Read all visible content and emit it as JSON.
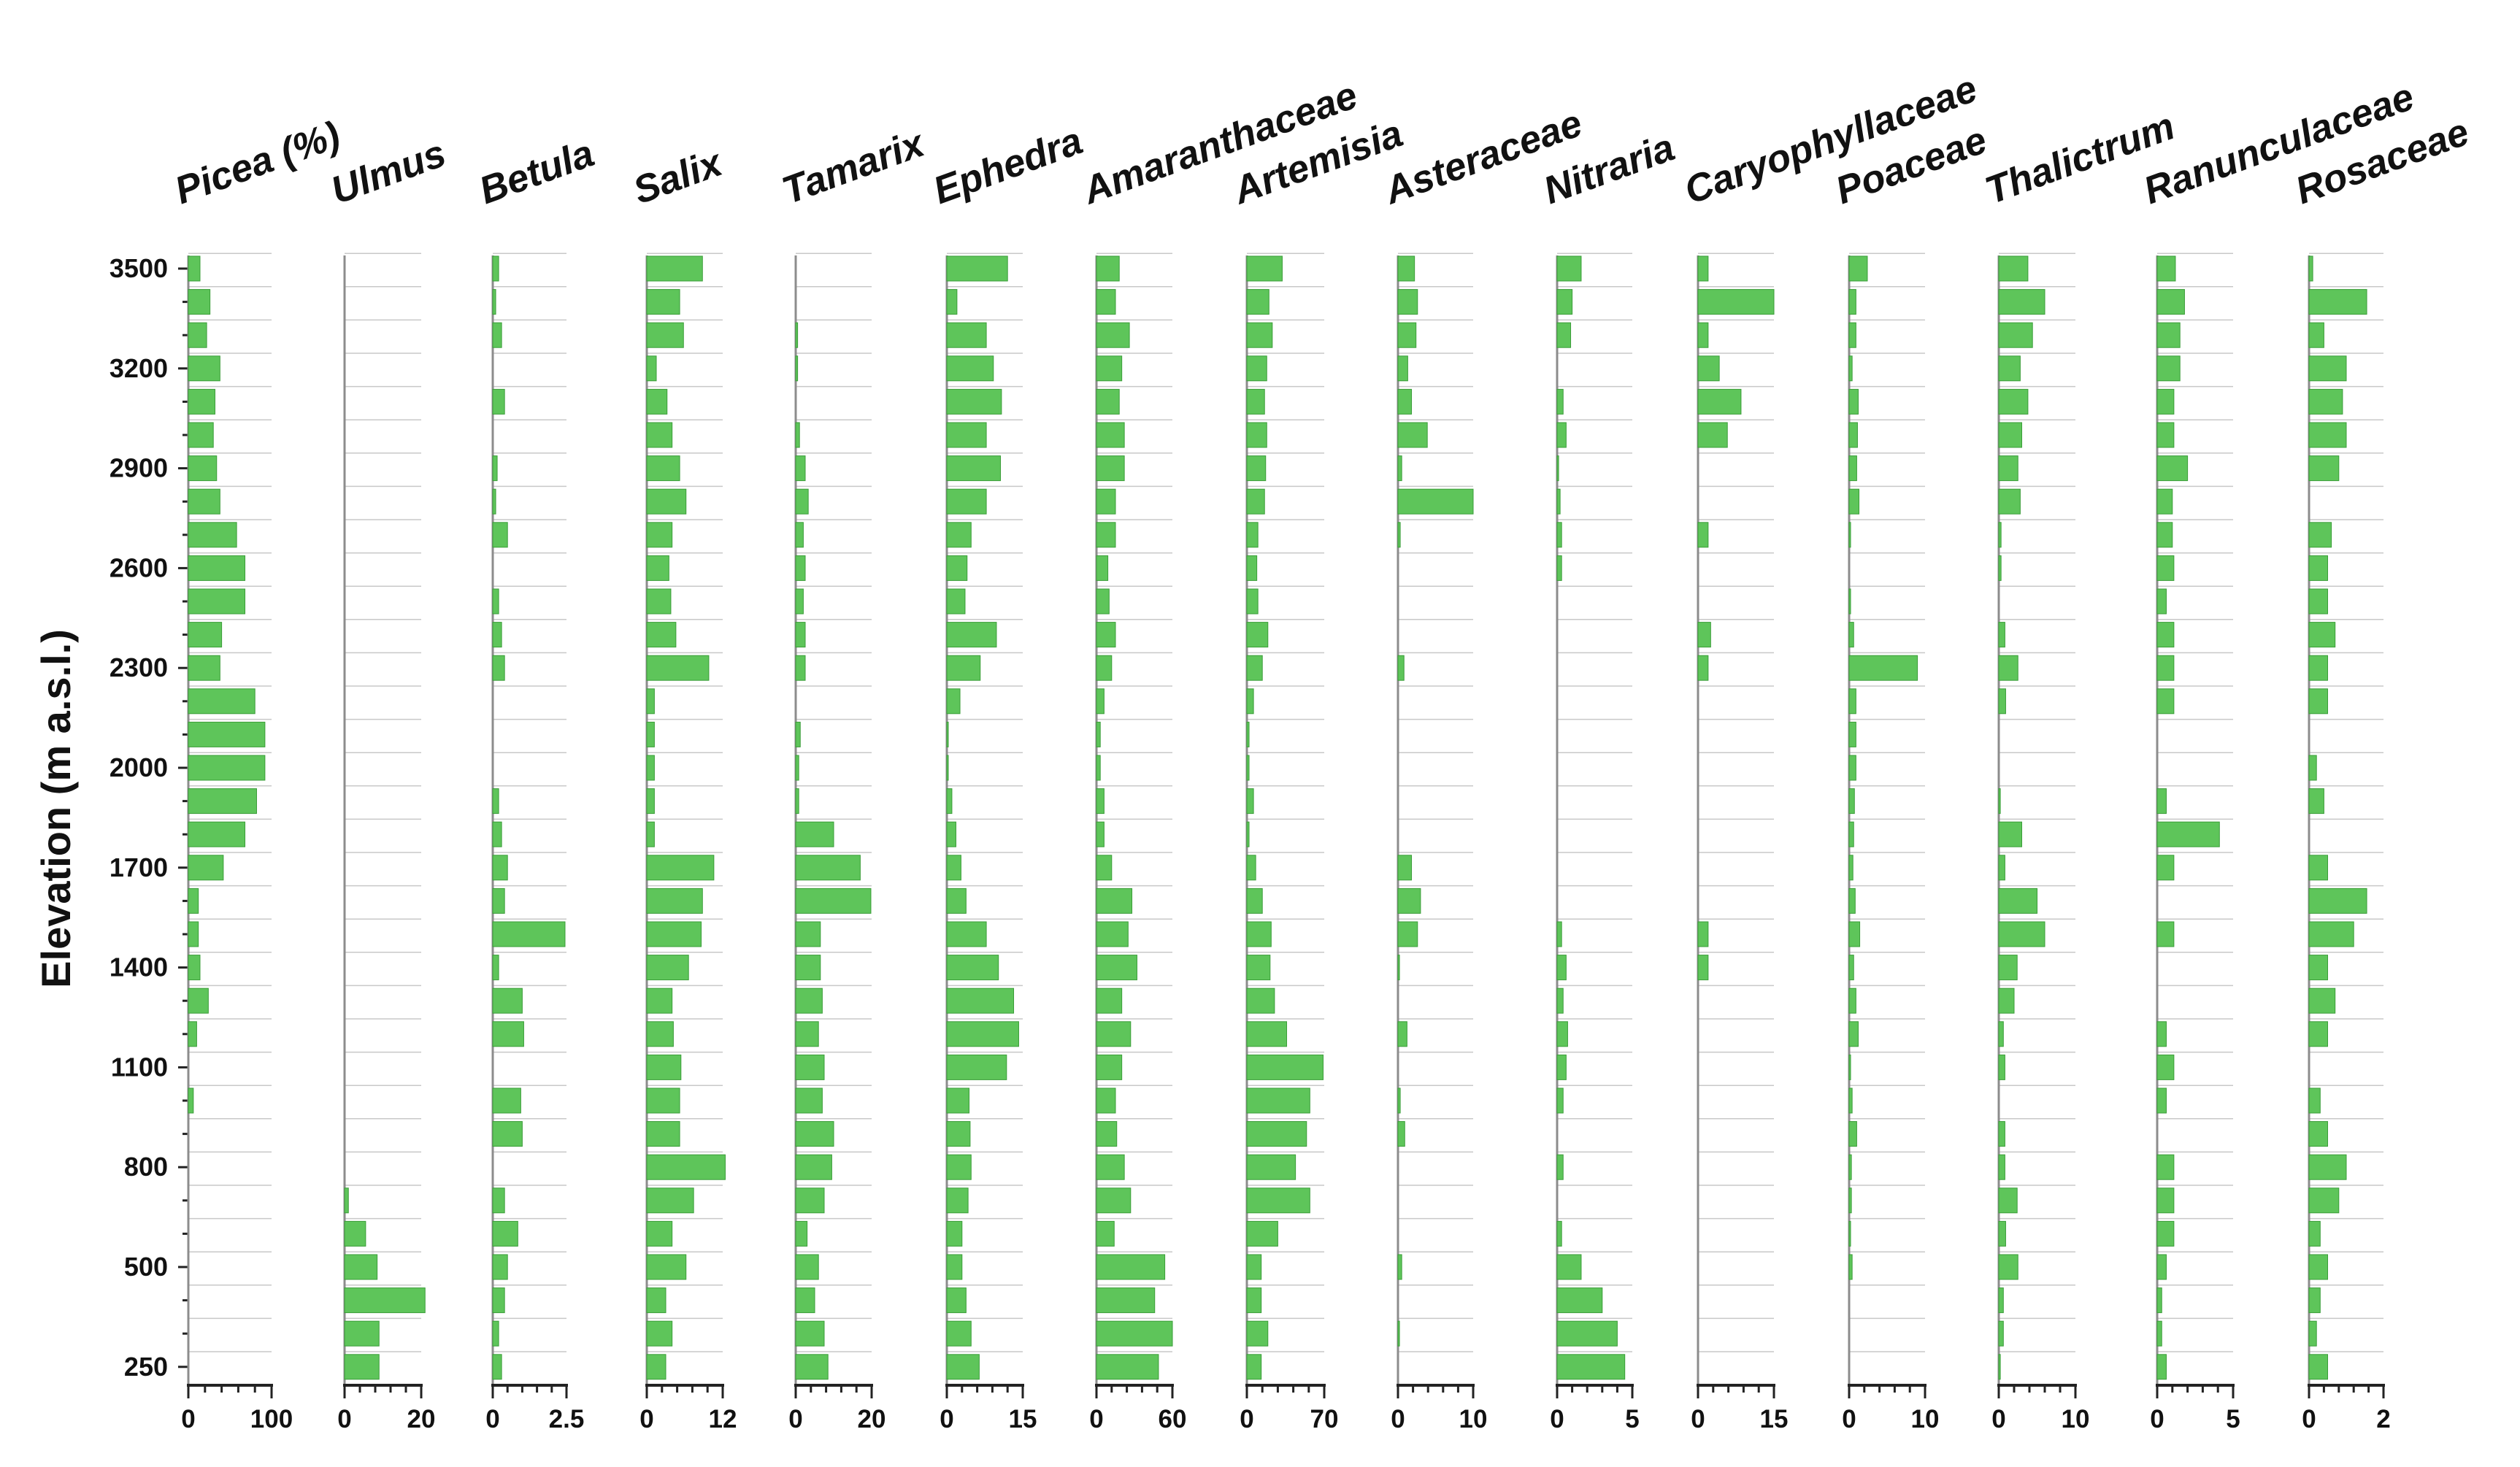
{
  "colors": {
    "bar": "#5ec55a",
    "bar_edge": "#3a9d38",
    "axis": "#222222",
    "gridline": "#c8c8c8",
    "baseline": "#8c8c8c"
  },
  "chart_data": {
    "type": "bar",
    "orientation": "horizontal",
    "ylabel": "Elevation (m a.s.l.)",
    "yticks": [
      "3500",
      "3200",
      "2900",
      "2600",
      "2300",
      "2000",
      "1700",
      "1400",
      "1100",
      "800",
      "500",
      "250"
    ],
    "n_samples": 34,
    "panels": [
      {
        "title": "Picea (%)",
        "xmax": 100,
        "xticks": [
          "0",
          "100"
        ],
        "values": [
          14,
          26,
          22,
          38,
          32,
          30,
          34,
          38,
          58,
          68,
          68,
          40,
          38,
          80,
          92,
          92,
          82,
          68,
          42,
          12,
          12,
          14,
          24,
          10,
          0,
          6,
          0,
          0,
          0,
          0,
          0,
          0,
          0,
          0
        ]
      },
      {
        "title": "Ulmus",
        "xmax": 20,
        "xticks": [
          "0",
          "20"
        ],
        "values": [
          0,
          0,
          0,
          0,
          0,
          0,
          0,
          0,
          0,
          0,
          0,
          0,
          0,
          0,
          0,
          0,
          0,
          0,
          0,
          0,
          0,
          0,
          0,
          0,
          0,
          0,
          0,
          0,
          1,
          5.5,
          8.5,
          21,
          9,
          9
        ]
      },
      {
        "title": "Betula",
        "xmax": 2.5,
        "xticks": [
          "0",
          "2.5"
        ],
        "values": [
          0.2,
          0.1,
          0.3,
          0,
          0.4,
          0,
          0.15,
          0.1,
          0.5,
          0,
          0.2,
          0.3,
          0.4,
          0,
          0,
          0,
          0.2,
          0.3,
          0.5,
          0.4,
          2.45,
          0.2,
          1,
          1.05,
          0,
          0.95,
          1,
          0,
          0.4,
          0.85,
          0.5,
          0.4,
          0.2,
          0.3
        ]
      },
      {
        "title": "Salix",
        "xmax": 12,
        "xticks": [
          "0",
          "12"
        ],
        "values": [
          8.8,
          5.2,
          5.8,
          1.5,
          3.2,
          4,
          5.2,
          6.2,
          4,
          3.5,
          3.8,
          4.6,
          9.8,
          1.2,
          1.2,
          1.2,
          1.2,
          1.2,
          10.6,
          8.8,
          8.6,
          6.6,
          4,
          4.2,
          5.4,
          5.2,
          5.2,
          12.4,
          7.4,
          4,
          6.2,
          3,
          4,
          3
        ]
      },
      {
        "title": "Tamarix",
        "xmax": 20,
        "xticks": [
          "0",
          "20"
        ],
        "values": [
          0,
          0,
          0.5,
          0.5,
          0,
          1,
          2.5,
          3.3,
          2,
          2.5,
          2,
          2.5,
          2.5,
          0,
          1.2,
          0.8,
          0.8,
          10,
          17,
          19.8,
          6.5,
          6.5,
          7,
          6,
          7.5,
          7,
          10,
          9.5,
          7.5,
          3,
          6,
          5,
          7.5,
          8.5
        ]
      },
      {
        "title": "Ephedra",
        "xmax": 15,
        "xticks": [
          "0",
          "15"
        ],
        "values": [
          12,
          2,
          7.8,
          9.2,
          10.8,
          7.8,
          10.6,
          7.8,
          4.8,
          4,
          3.6,
          9.8,
          6.6,
          2.6,
          0.2,
          0.2,
          1,
          1.8,
          2.8,
          3.8,
          7.8,
          10.2,
          13.2,
          14.2,
          11.8,
          4.4,
          4.6,
          4.8,
          4.2,
          3,
          3,
          3.8,
          4.8,
          6.4
        ]
      },
      {
        "title": "Amaranthaceae",
        "xmax": 60,
        "xticks": [
          "0",
          "60"
        ],
        "values": [
          18,
          15,
          26,
          20,
          18,
          22,
          22,
          15,
          15,
          9,
          10,
          15,
          12,
          6,
          3,
          3,
          6,
          6,
          12,
          28,
          25,
          32,
          20,
          27,
          20,
          15,
          16,
          22,
          27,
          14,
          54,
          46,
          60,
          49
        ]
      },
      {
        "title": "Artemisia",
        "xmax": 70,
        "xticks": [
          "0",
          "70"
        ],
        "values": [
          32,
          20,
          23,
          18,
          16,
          18,
          17,
          16,
          10,
          9,
          10,
          19,
          14,
          6,
          2,
          2,
          6,
          2,
          8,
          14,
          22,
          21,
          25,
          36,
          69,
          57,
          54,
          44,
          57,
          28,
          13,
          13,
          19,
          13
        ]
      },
      {
        "title": "Asteraceae",
        "xmax": 10,
        "xticks": [
          "0",
          "10"
        ],
        "values": [
          2.2,
          2.6,
          2.4,
          1.3,
          1.8,
          3.9,
          0.5,
          10,
          0.3,
          0,
          0,
          0,
          0.8,
          0,
          0,
          0,
          0,
          0,
          1.8,
          3,
          2.6,
          0.2,
          0,
          1.2,
          0,
          0.3,
          0.9,
          0,
          0,
          0,
          0.5,
          0,
          0.2,
          0
        ]
      },
      {
        "title": "Nitraria",
        "xmax": 5,
        "xticks": [
          "0",
          "5"
        ],
        "values": [
          1.6,
          1,
          0.9,
          0,
          0.4,
          0.6,
          0.1,
          0.2,
          0.3,
          0.3,
          0,
          0,
          0,
          0,
          0,
          0,
          0,
          0,
          0,
          0,
          0.3,
          0.6,
          0.4,
          0.7,
          0.6,
          0.4,
          0,
          0.4,
          0,
          0.3,
          1.6,
          3,
          4,
          4.5
        ]
      },
      {
        "title": "Caryophyllaceae",
        "xmax": 15,
        "xticks": [
          "0",
          "15"
        ],
        "values": [
          2,
          15,
          2,
          4.2,
          8.5,
          5.8,
          0,
          0,
          2,
          0,
          0,
          2.5,
          2,
          0,
          0,
          0,
          0,
          0,
          0,
          0,
          2,
          2,
          0,
          0,
          0,
          0,
          0,
          0,
          0,
          0,
          0,
          0,
          0,
          0
        ]
      },
      {
        "title": "Poaceae",
        "xmax": 10,
        "xticks": [
          "0",
          "10"
        ],
        "values": [
          2.4,
          0.9,
          0.9,
          0.4,
          1.2,
          1.1,
          1,
          1.3,
          0.1,
          0,
          0.1,
          0.6,
          9,
          0.9,
          0.9,
          0.9,
          0.7,
          0.6,
          0.5,
          0.8,
          1.4,
          0.6,
          0.9,
          1.2,
          0.1,
          0.4,
          1,
          0.3,
          0.3,
          0.1,
          0.4,
          0,
          0,
          0
        ]
      },
      {
        "title": "Thalictrum",
        "xmax": 10,
        "xticks": [
          "0",
          "10"
        ],
        "values": [
          3.8,
          6,
          4.4,
          2.8,
          3.8,
          3,
          2.5,
          2.8,
          0.3,
          0.3,
          0,
          0.8,
          2.5,
          0.9,
          0,
          0,
          0.2,
          3,
          0.8,
          5,
          6,
          2.4,
          2,
          0.6,
          0.8,
          0,
          0.8,
          0.8,
          2.4,
          0.9,
          2.5,
          0.6,
          0.6,
          0.2
        ]
      },
      {
        "title": "Ranunculaceae",
        "xmax": 5,
        "xticks": [
          "0",
          "5"
        ],
        "values": [
          1.2,
          1.8,
          1.5,
          1.5,
          1.1,
          1.1,
          2,
          1,
          1,
          1.1,
          0.6,
          1.1,
          1.1,
          1.1,
          0,
          0,
          0.6,
          4.1,
          1.1,
          0,
          1.1,
          0,
          0,
          0.6,
          1.1,
          0.6,
          0,
          1.1,
          1.1,
          1.1,
          0.6,
          0.3,
          0.3,
          0.6
        ]
      },
      {
        "title": "Rosaceae",
        "xmax": 2,
        "xticks": [
          "0",
          "2"
        ],
        "values": [
          0.1,
          1.55,
          0.4,
          1,
          0.9,
          1,
          0.8,
          0,
          0.6,
          0.5,
          0.5,
          0.7,
          0.5,
          0.5,
          0,
          0.2,
          0.4,
          0,
          0.5,
          1.55,
          1.2,
          0.5,
          0.7,
          0.5,
          0,
          0.3,
          0.5,
          1,
          0.8,
          0.3,
          0.5,
          0.3,
          0.2,
          0.5
        ]
      }
    ]
  }
}
